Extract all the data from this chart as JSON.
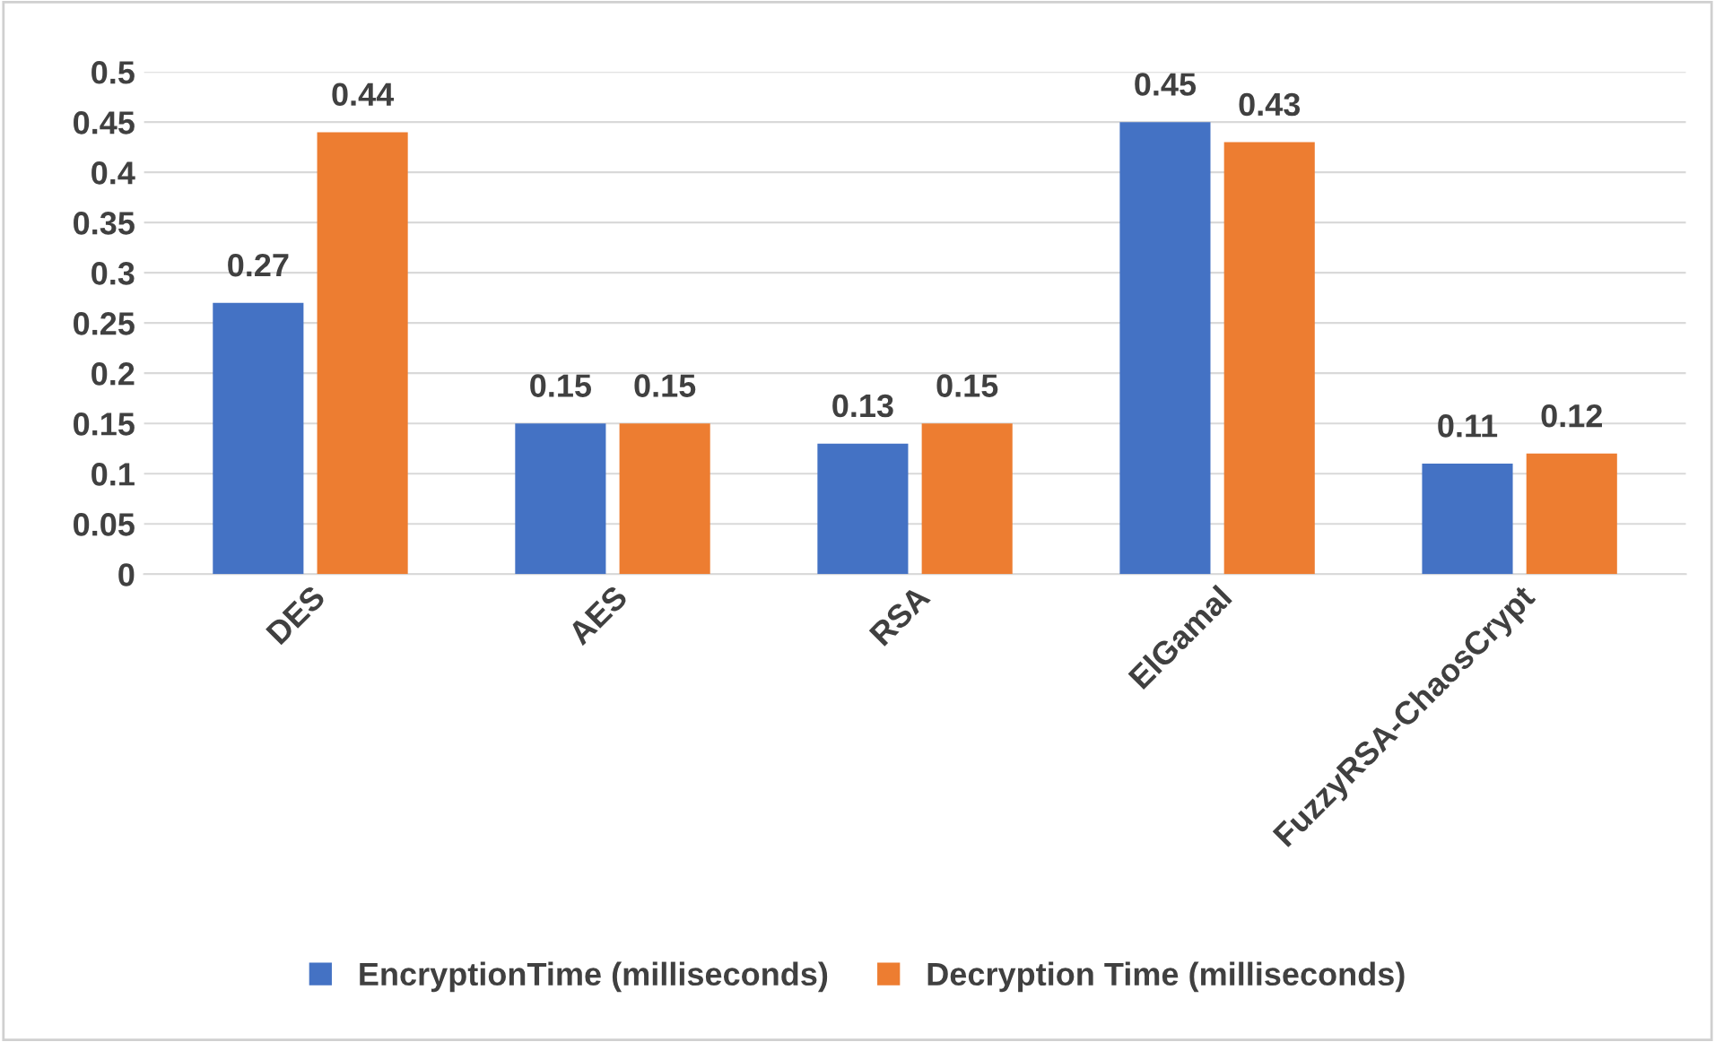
{
  "chart_data": {
    "type": "bar",
    "categories": [
      "DES",
      "AES",
      "RSA",
      "ElGamal",
      "FuzzyRSA-ChaosCrypt"
    ],
    "series": [
      {
        "name": "EncryptionTime (milliseconds)",
        "color": "#4472c4",
        "values": [
          0.27,
          0.15,
          0.13,
          0.45,
          0.11
        ]
      },
      {
        "name": "Decryption Time (milliseconds)",
        "color": "#ed7d31",
        "values": [
          0.44,
          0.15,
          0.15,
          0.43,
          0.12
        ]
      }
    ],
    "ylim": [
      0,
      0.5
    ],
    "yticks": [
      0,
      0.05,
      0.1,
      0.15,
      0.2,
      0.25,
      0.3,
      0.35,
      0.4,
      0.45,
      0.5
    ],
    "grid": "y",
    "legend": "bottom",
    "data_labels": true
  }
}
